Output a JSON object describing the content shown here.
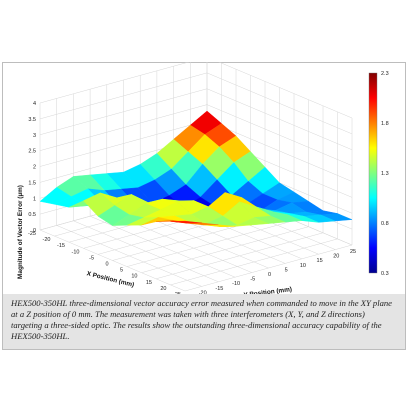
{
  "chart_data": {
    "type": "surface",
    "title": "",
    "xlabel": "X Position (mm)",
    "ylabel": "Y Position (mm)",
    "zlabel": "Magnitude of Vector Error (µm)",
    "x_ticks": [
      "-25",
      "-20",
      "-15",
      "-10",
      "-5",
      "0",
      "5",
      "10",
      "15",
      "20",
      "25"
    ],
    "y_ticks": [
      "-25",
      "-20",
      "-15",
      "-10",
      "-5",
      "0",
      "5",
      "10",
      "15",
      "20",
      "25"
    ],
    "z_ticks": [
      "0",
      "0.5",
      "1",
      "1.5",
      "2",
      "2.5",
      "3",
      "3.5",
      "4"
    ],
    "colorbar_ticks": [
      "0.3",
      "0.8",
      "1.3",
      "1.8",
      "2.3"
    ],
    "colorbar_range": [
      0.3,
      2.3
    ],
    "colormap": "jet",
    "xlim": [
      -25,
      25
    ],
    "ylim": [
      -25,
      25
    ],
    "zlim": [
      0,
      4
    ],
    "grid": true,
    "x": [
      -25,
      -20,
      -15,
      -10,
      -5,
      0,
      5,
      10,
      15,
      20,
      25
    ],
    "y": [
      -25,
      -20,
      -15,
      -10,
      -5,
      0,
      5,
      10,
      15,
      20,
      25
    ],
    "z": [
      [
        0.9,
        1.2,
        1.4,
        1.3,
        1.2,
        1.1,
        1.2,
        1.4,
        1.7,
        2.0,
        2.3
      ],
      [
        1.0,
        1.1,
        1.2,
        1.0,
        0.9,
        0.8,
        0.9,
        1.1,
        1.5,
        1.9,
        2.1
      ],
      [
        1.1,
        1.0,
        0.9,
        0.7,
        0.6,
        0.5,
        0.6,
        0.8,
        1.3,
        1.7,
        1.9
      ],
      [
        1.5,
        1.6,
        1.3,
        0.9,
        0.6,
        0.5,
        0.4,
        0.6,
        1.0,
        1.4,
        1.6
      ],
      [
        1.2,
        1.4,
        1.6,
        1.2,
        0.8,
        0.6,
        0.5,
        0.5,
        0.7,
        1.0,
        1.3
      ],
      [
        1.1,
        1.3,
        1.5,
        1.5,
        1.3,
        0.9,
        0.6,
        0.6,
        0.6,
        0.8,
        1.0
      ],
      [
        1.3,
        1.4,
        1.5,
        1.6,
        1.5,
        1.1,
        0.8,
        0.7,
        0.6,
        0.8,
        0.9
      ],
      [
        1.5,
        1.6,
        1.5,
        1.4,
        1.5,
        1.8,
        1.5,
        1.0,
        0.8,
        0.9,
        0.8
      ],
      [
        1.8,
        1.7,
        1.5,
        1.3,
        1.4,
        1.7,
        1.4,
        1.1,
        0.9,
        0.8,
        0.7
      ],
      [
        2.0,
        1.8,
        1.6,
        1.4,
        1.3,
        1.4,
        1.3,
        1.2,
        1.0,
        0.9,
        0.8
      ],
      [
        2.2,
        2.0,
        1.8,
        1.6,
        1.5,
        1.4,
        1.3,
        1.2,
        1.0,
        0.9,
        0.8
      ]
    ]
  },
  "caption": "HEX500-350HL three-dimensional vector accuracy error measured when commanded to move in the XY plane at a Z position of 0 mm. The measurement was taken with three interferometers (X, Y, and Z directions) targeting a three-sided optic. The results show the outstanding three-dimensional accuracy capability of the HEX500-350HL."
}
